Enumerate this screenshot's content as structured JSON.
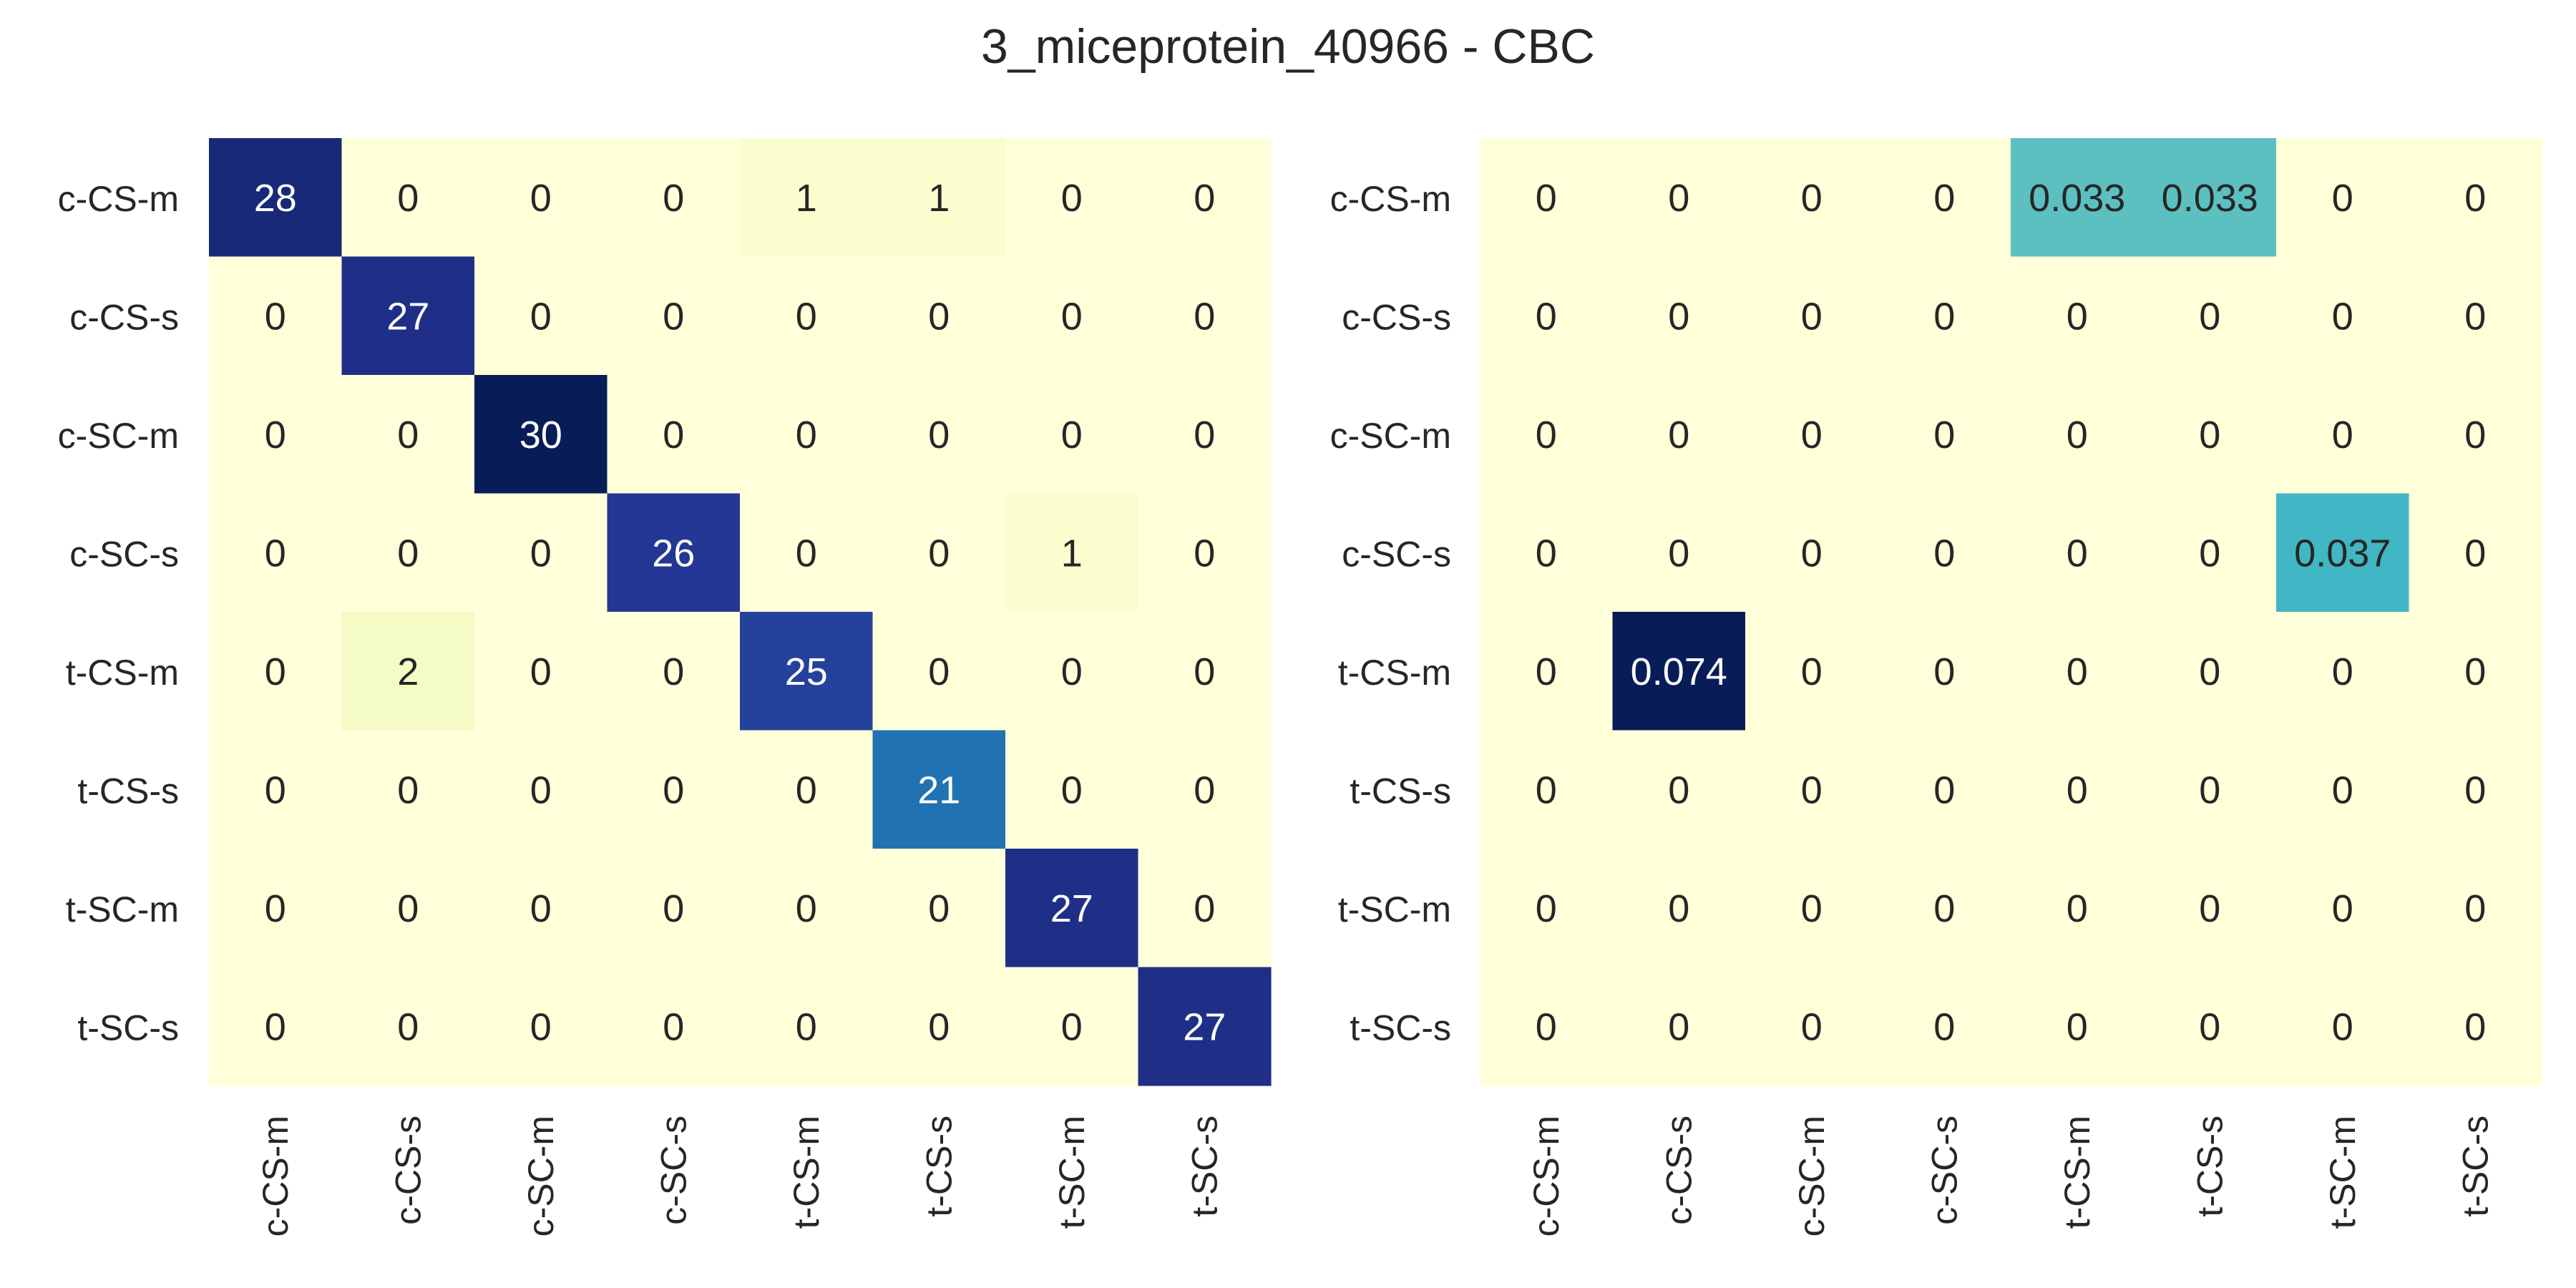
{
  "title": "3_miceprotein_40966 - CBC",
  "chart_data": [
    {
      "type": "heatmap",
      "title": "",
      "xlabel": "",
      "ylabel": "",
      "row_labels": [
        "c-CS-m",
        "c-CS-s",
        "c-SC-m",
        "c-SC-s",
        "t-CS-m",
        "t-CS-s",
        "t-SC-m",
        "t-SC-s"
      ],
      "col_labels": [
        "c-CS-m",
        "c-CS-s",
        "c-SC-m",
        "c-SC-s",
        "t-CS-m",
        "t-CS-s",
        "t-SC-m",
        "t-SC-s"
      ],
      "values": [
        [
          28,
          0,
          0,
          0,
          1,
          1,
          0,
          0
        ],
        [
          0,
          27,
          0,
          0,
          0,
          0,
          0,
          0
        ],
        [
          0,
          0,
          30,
          0,
          0,
          0,
          0,
          0
        ],
        [
          0,
          0,
          0,
          26,
          0,
          0,
          1,
          0
        ],
        [
          0,
          2,
          0,
          0,
          25,
          0,
          0,
          0
        ],
        [
          0,
          0,
          0,
          0,
          0,
          21,
          0,
          0
        ],
        [
          0,
          0,
          0,
          0,
          0,
          0,
          27,
          0
        ],
        [
          0,
          0,
          0,
          0,
          0,
          0,
          0,
          27
        ]
      ],
      "value_range": [
        0,
        30
      ],
      "colormap": "YlGnBu",
      "colorbar": false
    },
    {
      "type": "heatmap",
      "title": "",
      "xlabel": "",
      "ylabel": "",
      "row_labels": [
        "c-CS-m",
        "c-CS-s",
        "c-SC-m",
        "c-SC-s",
        "t-CS-m",
        "t-CS-s",
        "t-SC-m",
        "t-SC-s"
      ],
      "col_labels": [
        "c-CS-m",
        "c-CS-s",
        "c-SC-m",
        "c-SC-s",
        "t-CS-m",
        "t-CS-s",
        "t-SC-m",
        "t-SC-s"
      ],
      "values": [
        [
          0,
          0,
          0,
          0,
          0.033,
          0.033,
          0,
          0
        ],
        [
          0,
          0,
          0,
          0,
          0,
          0,
          0,
          0
        ],
        [
          0,
          0,
          0,
          0,
          0,
          0,
          0,
          0
        ],
        [
          0,
          0,
          0,
          0,
          0,
          0,
          0.037,
          0
        ],
        [
          0,
          0.074,
          0,
          0,
          0,
          0,
          0,
          0
        ],
        [
          0,
          0,
          0,
          0,
          0,
          0,
          0,
          0
        ],
        [
          0,
          0,
          0,
          0,
          0,
          0,
          0,
          0
        ],
        [
          0,
          0,
          0,
          0,
          0,
          0,
          0,
          0
        ]
      ],
      "value_range": [
        0,
        0.074
      ],
      "colormap": "YlGnBu",
      "colorbar": false
    }
  ]
}
